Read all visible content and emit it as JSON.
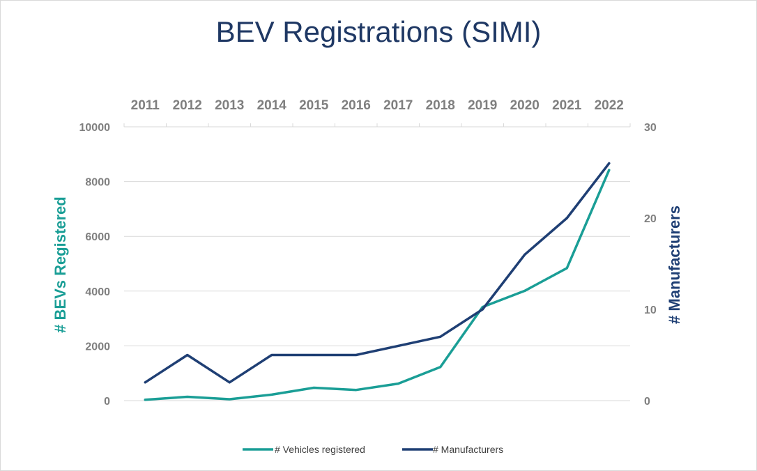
{
  "chart_data": {
    "type": "line",
    "title": "BEV Registrations (SIMI)",
    "categories": [
      "2011",
      "2012",
      "2013",
      "2014",
      "2015",
      "2016",
      "2017",
      "2018",
      "2019",
      "2020",
      "2021",
      "2022"
    ],
    "y_left": {
      "label": "# BEVs Registered",
      "range": [
        0,
        10000
      ],
      "ticks": [
        "0",
        "2000",
        "4000",
        "6000",
        "8000",
        "10000"
      ]
    },
    "y_right": {
      "label": "# Manufacturers",
      "range": [
        0,
        30
      ],
      "ticks": [
        "0",
        "10",
        "20",
        "30"
      ]
    },
    "series": [
      {
        "name": "# Vehicles registered",
        "axis": "left",
        "color": "#1a9e96",
        "values": [
          30,
          140,
          50,
          220,
          470,
          390,
          620,
          1230,
          3420,
          4010,
          4840,
          8420
        ]
      },
      {
        "name": "# Manufacturers",
        "axis": "right",
        "color": "#1f3f74",
        "values": [
          2,
          5,
          2,
          5,
          5,
          5,
          6,
          7,
          10,
          16,
          20,
          26
        ]
      }
    ],
    "grid": true,
    "legend_position": "bottom"
  },
  "colors": {
    "title": "#1f3864",
    "left_axis_label": "#1a9e96",
    "right_axis_label": "#1f3f74",
    "tick": "#7f7f7f",
    "grid": "#d9d9d9"
  }
}
